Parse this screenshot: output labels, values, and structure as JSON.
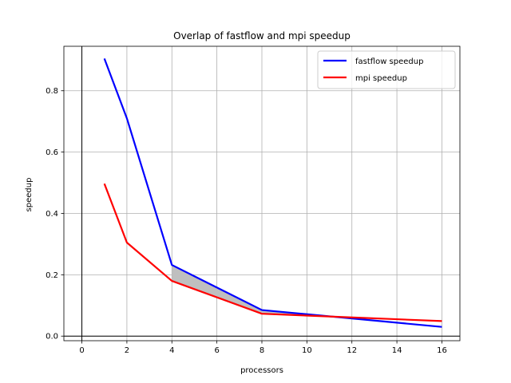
{
  "chart_data": {
    "type": "line",
    "title": "Overlap of fastflow and mpi speedup",
    "xlabel": "processors",
    "ylabel": "speedup",
    "xlim": [
      -0.8,
      16.8
    ],
    "ylim": [
      -0.015,
      0.945
    ],
    "xticks": [
      0,
      2,
      4,
      6,
      8,
      10,
      12,
      14,
      16
    ],
    "yticks": [
      0.0,
      0.2,
      0.4,
      0.6,
      0.8
    ],
    "grid": true,
    "legend_position": "top-right",
    "x": [
      1,
      2,
      4,
      8,
      16
    ],
    "series": [
      {
        "name": "fastflow speedup",
        "color": "#0000ff",
        "values": [
          0.905,
          0.71,
          0.232,
          0.085,
          0.03
        ]
      },
      {
        "name": "mpi speedup",
        "color": "#ff0000",
        "values": [
          0.497,
          0.305,
          0.18,
          0.073,
          0.049
        ]
      }
    ],
    "fill_between": {
      "x_range": [
        4,
        12
      ],
      "color": "#bfbfbf"
    },
    "reference_lines": {
      "x_zero": true,
      "y_zero": true,
      "color": "#000000"
    }
  }
}
